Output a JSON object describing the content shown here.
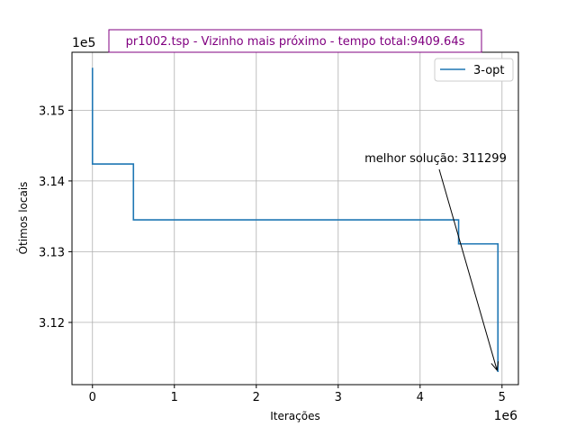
{
  "chart_data": {
    "type": "line",
    "title": "pr1002.tsp - Vizinho mais próximo - tempo total:9409.64s",
    "xlabel": "Iterações",
    "ylabel": "Ótimos locais",
    "x_offset_label": "1e6",
    "y_offset_label": "1e5",
    "xlim": [
      -250000,
      5200000
    ],
    "ylim": [
      311120,
      315820
    ],
    "x_ticks": [
      0,
      1000000,
      2000000,
      3000000,
      4000000,
      5000000
    ],
    "x_tick_labels": [
      "0",
      "1",
      "2",
      "3",
      "4",
      "5"
    ],
    "y_ticks": [
      312000,
      313000,
      314000,
      315000
    ],
    "y_tick_labels": [
      "3.12",
      "3.13",
      "3.14",
      "3.15"
    ],
    "grid": true,
    "legend_position": "upper right",
    "series": [
      {
        "name": "3-opt",
        "color": "#1f77b4",
        "x": [
          0,
          0,
          500000,
          500000,
          4470000,
          4470000,
          4950000,
          4950000
        ],
        "y": [
          315600,
          314240,
          314240,
          313450,
          313450,
          313110,
          313110,
          311299
        ]
      }
    ],
    "annotation": {
      "text": "melhor solução: 311299",
      "x": 4950000,
      "y": 311299
    },
    "title_color": "#800080"
  }
}
